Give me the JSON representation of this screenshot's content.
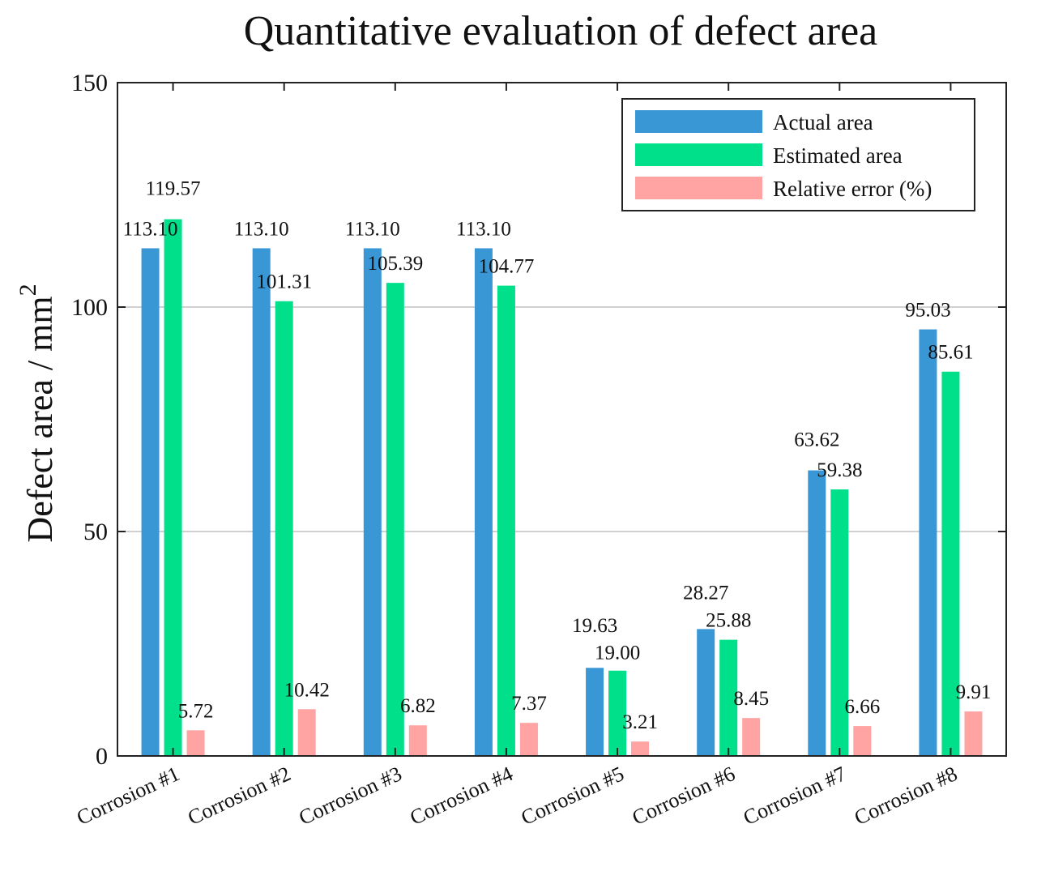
{
  "chart_data": {
    "type": "bar",
    "title": "Quantitative evaluation of defect area",
    "ylabel": "Defect area / mm",
    "ylabel_superscript": "2",
    "xlabel": "",
    "ylim": [
      0,
      150
    ],
    "yticks": [
      "0",
      "50",
      "100",
      "150"
    ],
    "ytick_values": [
      0,
      50,
      100,
      150
    ],
    "grid": true,
    "legend_position": "top-right",
    "categories": [
      "Corrosion #1",
      "Corrosion #2",
      "Corrosion #3",
      "Corrosion #4",
      "Corrosion #5",
      "Corrosion #6",
      "Corrosion #7",
      "Corrosion #8"
    ],
    "series": [
      {
        "name": "Actual area",
        "color": "#3a97d6",
        "values": [
          113.1,
          113.1,
          113.1,
          113.1,
          19.63,
          28.27,
          63.62,
          95.03
        ],
        "labels": [
          "113.10",
          "113.10",
          "113.10",
          "113.10",
          "19.63",
          "28.27",
          "63.62",
          "95.03"
        ]
      },
      {
        "name": "Estimated area",
        "color": "#00e08a",
        "values": [
          119.57,
          101.31,
          105.39,
          104.77,
          19.0,
          25.88,
          59.38,
          85.61
        ],
        "labels": [
          "119.57",
          "101.31",
          "105.39",
          "104.77",
          "19.00",
          "25.88",
          "59.38",
          "85.61"
        ]
      },
      {
        "name": "Relative error (%)",
        "color": "#ffa3a3",
        "values": [
          5.72,
          10.42,
          6.82,
          7.37,
          3.21,
          8.45,
          6.66,
          9.91
        ],
        "labels": [
          "5.72",
          "10.42",
          "6.82",
          "7.37",
          "3.21",
          "8.45",
          "6.66",
          "9.91"
        ]
      }
    ]
  }
}
